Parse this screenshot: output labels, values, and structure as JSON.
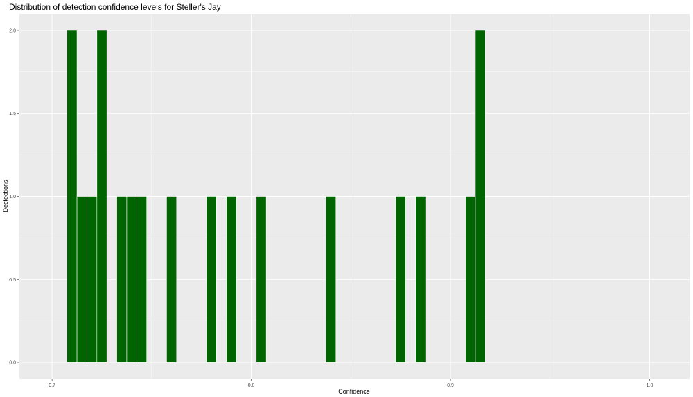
{
  "chart_data": {
    "type": "bar",
    "title": "Distribution of detection confidence levels for Steller's Jay",
    "xlabel": "Confidence",
    "ylabel": "Dectections",
    "binwidth": 0.005,
    "bins": [
      {
        "x": 0.71,
        "count": 2
      },
      {
        "x": 0.715,
        "count": 1
      },
      {
        "x": 0.72,
        "count": 1
      },
      {
        "x": 0.725,
        "count": 2
      },
      {
        "x": 0.735,
        "count": 1
      },
      {
        "x": 0.74,
        "count": 1
      },
      {
        "x": 0.745,
        "count": 1
      },
      {
        "x": 0.76,
        "count": 1
      },
      {
        "x": 0.78,
        "count": 1
      },
      {
        "x": 0.79,
        "count": 1
      },
      {
        "x": 0.805,
        "count": 1
      },
      {
        "x": 0.84,
        "count": 1
      },
      {
        "x": 0.875,
        "count": 1
      },
      {
        "x": 0.885,
        "count": 1
      },
      {
        "x": 0.91,
        "count": 1
      },
      {
        "x": 0.915,
        "count": 2
      }
    ],
    "xlim": [
      0.6836,
      1.02
    ],
    "ylim": [
      -0.1,
      2.1
    ],
    "xticks": [
      "0.7",
      "0.8",
      "0.9",
      "1.0"
    ],
    "yticks": [
      "0.0",
      "0.5",
      "1.0",
      "1.5",
      "2.0"
    ],
    "grid": true,
    "colors": {
      "bar": "#006400",
      "bar_outline": "#ffffff",
      "panel": "#ebebeb",
      "grid": "#ffffff"
    }
  }
}
